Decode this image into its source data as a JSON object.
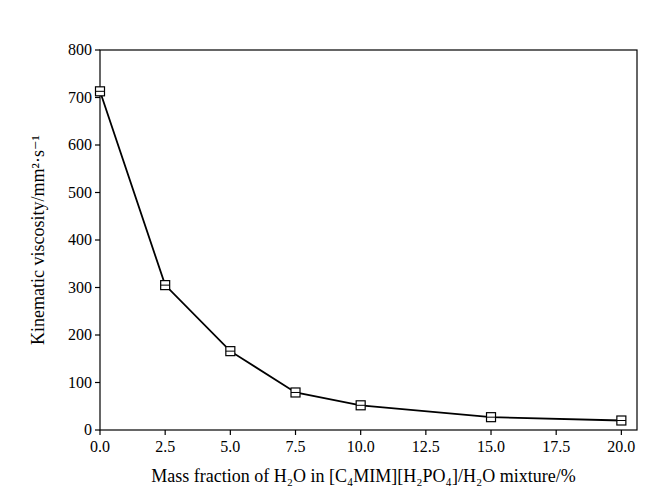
{
  "chart_data": {
    "type": "line",
    "x_label": "Mass fraction of H₂O in [C₄MIM][H₂PO₄]/H₂O mixture/%",
    "y_label": "Kinematic viscosity/mm²·s⁻¹",
    "x": [
      0,
      2.5,
      5,
      7.5,
      10,
      15,
      20
    ],
    "values": [
      713,
      305,
      166,
      79,
      52,
      27,
      20
    ],
    "color": "#000000",
    "marker": "square",
    "line_style": "solid",
    "xlim": [
      0,
      20.6
    ],
    "xticks": [
      {
        "value": 0,
        "label": "0.0"
      },
      2.5,
      {
        "value": 5,
        "label": "5.0"
      },
      7.5,
      {
        "value": 10,
        "label": "10.0"
      },
      12.5,
      {
        "value": 15,
        "label": "15.0"
      },
      17.5,
      {
        "value": 20,
        "label": "20.0"
      }
    ],
    "ylim": [
      0,
      800
    ],
    "yticks": [
      0,
      100,
      200,
      300,
      400,
      500,
      600,
      700,
      800
    ],
    "grid": false
  }
}
